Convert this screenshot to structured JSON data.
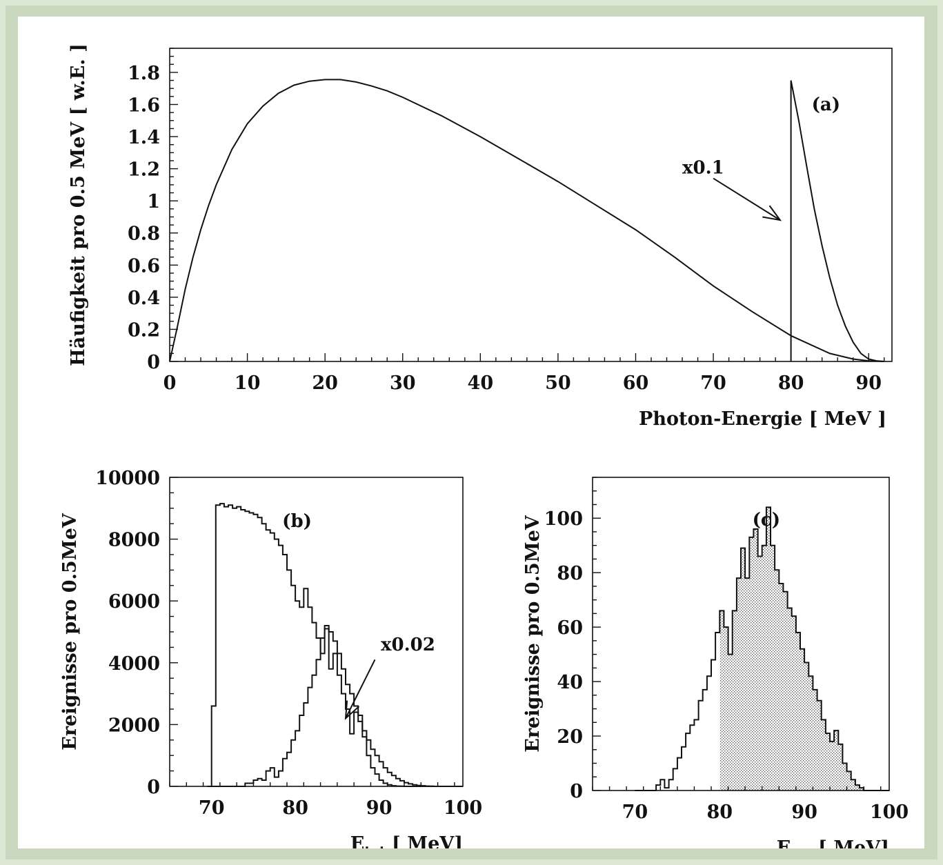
{
  "figure": {
    "background": "#ffffff",
    "border_color": "#c9d8bf",
    "ink_color": "#111111",
    "hatch_color": "#555555"
  },
  "chart_data": [
    {
      "id": "a",
      "type": "line",
      "panel_label": "(a)",
      "xlabel": "Photon-Energie [ MeV ]",
      "ylabel": "Häufigkeit pro 0.5 MeV [ w.E. ]",
      "xlim": [
        0,
        93
      ],
      "ylim": [
        0,
        1.95
      ],
      "xticks": [
        0,
        10,
        20,
        30,
        40,
        50,
        60,
        70,
        80,
        90
      ],
      "yticks": [
        0,
        0.2,
        0.4,
        0.6,
        0.8,
        1,
        1.2,
        1.4,
        1.6,
        1.8
      ],
      "ytick_labels": [
        "0",
        "0.2",
        "0.4",
        "0.6",
        "0.8",
        "1",
        "1.2",
        "1.4",
        "1.6",
        "1.8"
      ],
      "annotation": {
        "text": "x0.1",
        "text_at": [
          66,
          1.17
        ],
        "arrow_from": [
          70,
          1.14
        ],
        "arrow_to": [
          78.6,
          0.88
        ]
      },
      "series": [
        {
          "style": "solid",
          "x": [
            0,
            1,
            2,
            3,
            4,
            5,
            6,
            8,
            10,
            12,
            14,
            16,
            18,
            20,
            22,
            24,
            26,
            28,
            30,
            35,
            40,
            45,
            50,
            55,
            60,
            65,
            70,
            75,
            80,
            85,
            88,
            90,
            92
          ],
          "y": [
            0,
            0.22,
            0.45,
            0.65,
            0.82,
            0.97,
            1.1,
            1.32,
            1.48,
            1.59,
            1.67,
            1.72,
            1.745,
            1.755,
            1.755,
            1.74,
            1.715,
            1.685,
            1.645,
            1.53,
            1.4,
            1.26,
            1.12,
            0.97,
            0.82,
            0.65,
            0.47,
            0.31,
            0.16,
            0.05,
            0.015,
            0.004,
            0
          ]
        },
        {
          "style": "solid",
          "x": [
            80,
            80,
            81,
            82,
            83,
            84,
            85,
            86,
            87,
            88,
            89,
            90,
            91,
            92
          ],
          "y": [
            0,
            1.75,
            1.5,
            1.22,
            0.95,
            0.72,
            0.52,
            0.35,
            0.22,
            0.12,
            0.05,
            0.015,
            0.004,
            0
          ]
        }
      ]
    },
    {
      "id": "b",
      "type": "histogram",
      "panel_label": "(b)",
      "xlabel": "E",
      "xlabel_sub": "tot",
      "xlabel_unit": "[ MeV]",
      "ylabel": "Ereignisse pro 0.5MeV",
      "xlim": [
        65,
        100
      ],
      "ylim": [
        0,
        10000
      ],
      "xticks": [
        70,
        80,
        90,
        100
      ],
      "yticks": [
        0,
        2000,
        4000,
        6000,
        8000,
        10000
      ],
      "annotation": {
        "text": "x0.02",
        "text_at": [
          90.2,
          4400
        ],
        "arrow_from": [
          89.5,
          4100
        ],
        "arrow_to": [
          86.0,
          2200
        ]
      },
      "series": [
        {
          "style": "step",
          "bin_start": 69.5,
          "bin_width": 0.5,
          "values": [
            0,
            2600,
            9100,
            9150,
            9050,
            9100,
            9000,
            9050,
            8950,
            8900,
            8850,
            8800,
            8700,
            8500,
            8300,
            8200,
            8000,
            7800,
            7500,
            7000,
            6500,
            6000,
            5800,
            6400,
            5800,
            5300,
            4800,
            4300,
            5200,
            3800,
            4300,
            3600,
            3000,
            2500,
            1700,
            2400,
            2300,
            1600,
            1000,
            600,
            400,
            200,
            100,
            50,
            20,
            10,
            5,
            0,
            0,
            0,
            0,
            0,
            0,
            0,
            0,
            0,
            0,
            0,
            0,
            0,
            0
          ]
        },
        {
          "style": "step",
          "bin_start": 70,
          "bin_width": 0.5,
          "values": [
            0,
            0,
            0,
            0,
            0,
            0,
            0,
            0,
            100,
            100,
            200,
            250,
            200,
            500,
            600,
            300,
            500,
            900,
            1100,
            1500,
            1800,
            2300,
            2700,
            3200,
            3600,
            4100,
            4800,
            5100,
            5000,
            4700,
            4300,
            3800,
            3300,
            3000,
            2600,
            2100,
            1800,
            1500,
            1200,
            1000,
            800,
            600,
            450,
            350,
            250,
            180,
            120,
            80,
            50,
            30,
            20,
            10,
            5,
            0
          ]
        }
      ]
    },
    {
      "id": "c",
      "type": "histogram",
      "panel_label": "(c)",
      "xlabel": "E",
      "xlabel_sub": "tot",
      "xlabel_unit": "[ MeV]",
      "ylabel": "Ereignisse pro 0.5MeV",
      "xlim": [
        65,
        100
      ],
      "ylim": [
        0,
        115
      ],
      "xticks": [
        70,
        80,
        90,
        100
      ],
      "yticks": [
        0,
        20,
        40,
        60,
        80,
        100
      ],
      "shaded_from": 80,
      "series": [
        {
          "style": "step",
          "bin_start": 70,
          "bin_width": 0.5,
          "values": [
            0,
            0,
            0,
            0,
            0,
            2,
            4,
            1,
            4,
            8,
            12,
            16,
            21,
            24,
            26,
            33,
            37,
            42,
            48,
            58,
            66,
            60,
            50,
            66,
            78,
            89,
            78,
            93,
            96,
            86,
            90,
            104,
            90,
            81,
            76,
            73,
            67,
            64,
            58,
            52,
            47,
            42,
            37,
            33,
            26,
            21,
            18,
            22,
            17,
            10,
            7,
            4,
            2,
            1,
            0,
            0,
            0,
            0,
            0,
            0
          ]
        }
      ]
    }
  ]
}
